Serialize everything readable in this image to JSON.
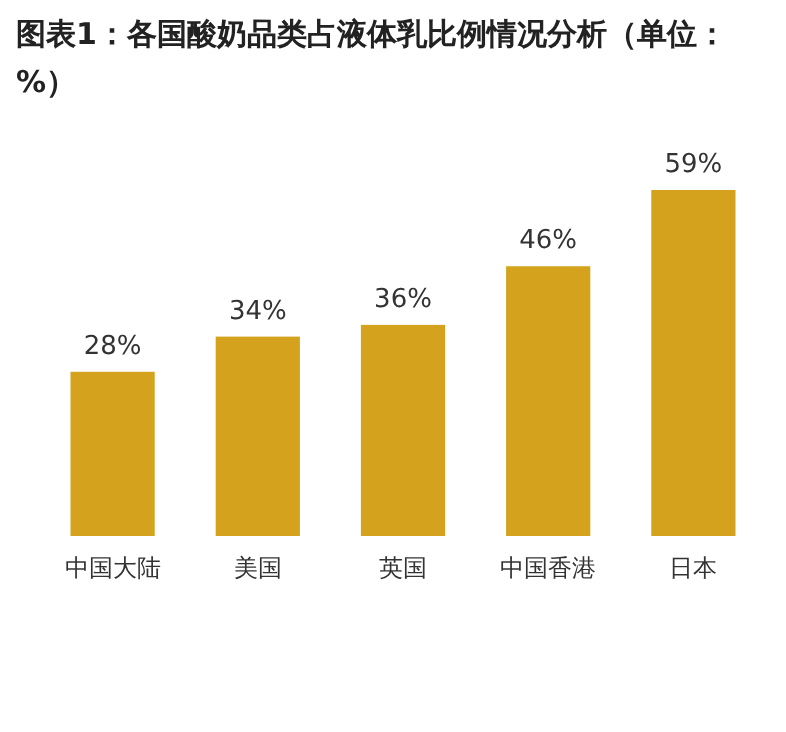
{
  "chart_data": {
    "type": "bar",
    "title": "图表1：各国酸奶品类占液体乳比例情况分析（单位：%）",
    "categories": [
      "中国大陆",
      "美国",
      "英国",
      "中国香港",
      "日本"
    ],
    "values": [
      28,
      34,
      36,
      46,
      59
    ],
    "value_labels": [
      "28%",
      "34%",
      "36%",
      "46%",
      "59%"
    ],
    "color": "#d4a21c"
  }
}
